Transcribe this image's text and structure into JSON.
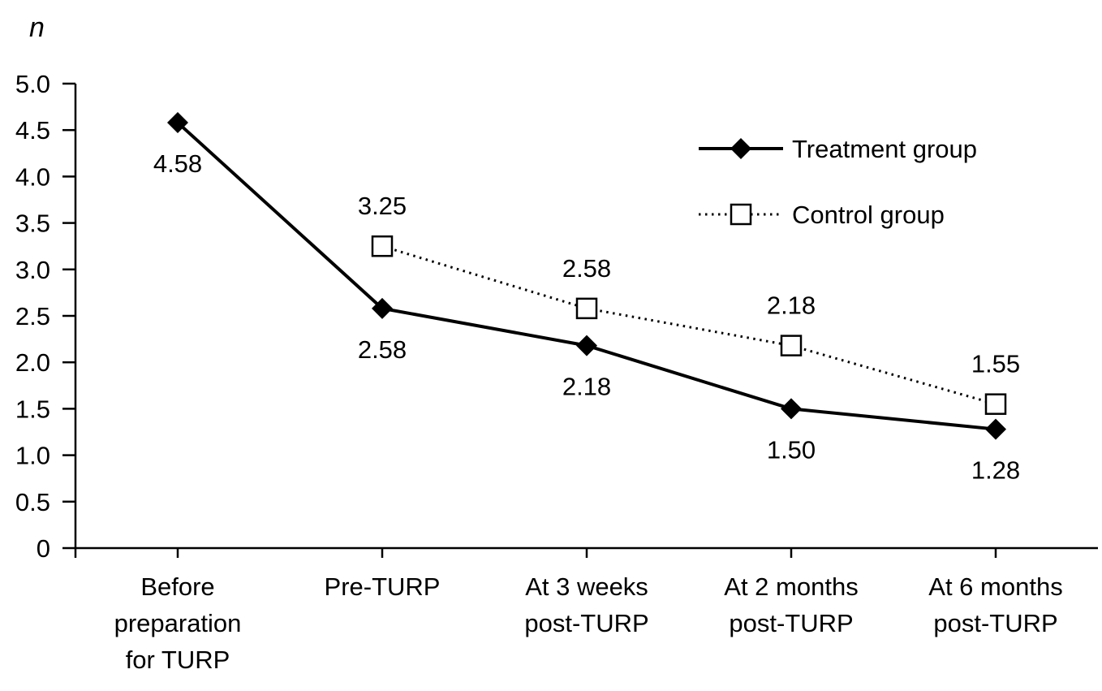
{
  "chart_data": {
    "type": "line",
    "title": "",
    "xlabel": "",
    "ylabel": "n",
    "ylim": [
      0,
      5
    ],
    "ytick_step": 0.5,
    "ytick_labels": [
      "0",
      "0.5",
      "1.0",
      "1.5",
      "2.0",
      "2.5",
      "3.0",
      "3.5",
      "4.0",
      "4.5",
      "5.0"
    ],
    "grid": false,
    "categories": [
      [
        "Before",
        "preparation",
        "for TURP"
      ],
      [
        "Pre-TURP"
      ],
      [
        "At 3 weeks",
        "post-TURP"
      ],
      [
        "At 2 months",
        "post-TURP"
      ],
      [
        "At 6 months",
        "post-TURP"
      ]
    ],
    "series": [
      {
        "name": "Treatment group",
        "marker": "diamond",
        "line": "solid",
        "start_index": 0,
        "values": [
          4.58,
          2.58,
          2.18,
          1.5,
          1.28
        ],
        "point_labels": [
          "4.58",
          "2.58",
          "2.18",
          "1.50",
          "1.28"
        ],
        "label_position": "below"
      },
      {
        "name": "Control group",
        "marker": "square",
        "line": "dotted",
        "start_index": 1,
        "values": [
          3.25,
          2.58,
          2.18,
          1.55
        ],
        "point_labels": [
          "3.25",
          "2.58",
          "2.18",
          "1.55"
        ],
        "label_position": "above"
      }
    ],
    "legend": {
      "position": "top-right",
      "entries": [
        {
          "label": "Treatment group",
          "marker": "diamond",
          "line": "solid"
        },
        {
          "label": "Control group",
          "marker": "square",
          "line": "dotted"
        }
      ]
    },
    "colors": {
      "foreground": "#000000",
      "background": "#ffffff"
    }
  }
}
